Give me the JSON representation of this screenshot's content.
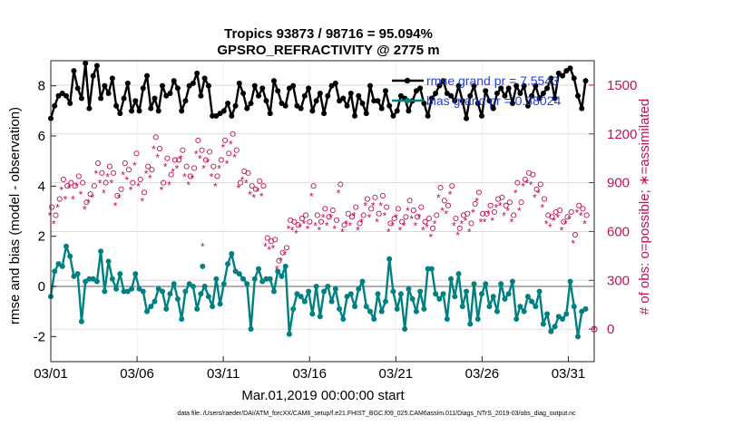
{
  "chart_data": {
    "type": "line",
    "title_line1": "Tropics 93873 / 98716 = 95.094%",
    "title_line2": "GPSRO_REFRACTIVITY @ 2775 m",
    "xlabel": "Mar.01,2019 00:00:00 start",
    "ylabel_left": "rmse and bias (model - observation)",
    "ylabel_right": "# of obs: o=possible; ∗=assimilated",
    "footer": "data file: /Users/raeder/DAI/ATM_forcXX/CAM6_setup/f.e21.FHIST_BGC.f09_025.CAM6assim.011/Diags_NTrS_2019-03/obs_diag_output.nc",
    "x_range": [
      0,
      31.5
    ],
    "x_ticks": [
      0,
      5,
      10,
      15,
      20,
      25,
      30
    ],
    "x_tick_labels": [
      "03/01",
      "03/06",
      "03/11",
      "03/16",
      "03/21",
      "03/26",
      "03/31"
    ],
    "ylim_left": [
      -3,
      9
    ],
    "y_ticks_left": [
      -2,
      0,
      2,
      4,
      6,
      8
    ],
    "y_tick_labels_left": [
      "-2",
      "0",
      "2",
      "4",
      "6",
      "8"
    ],
    "ylim_right": [
      -200,
      1650
    ],
    "y_ticks_right": [
      0,
      300,
      600,
      900,
      1200,
      1500
    ],
    "y_tick_labels_right": [
      "0",
      "300",
      "600",
      "900",
      "1200",
      "1500"
    ],
    "legend": {
      "rmse_label": "rmse grand pr = 7.5543",
      "bias_label": "bias grand pr = 0.38024"
    },
    "colors": {
      "rmse": "#000000",
      "bias": "#008080",
      "obs": "#c0105a",
      "zero_line": "#b0b0b0",
      "grid": "#e8c8d4"
    },
    "series": [
      {
        "name": "rmse",
        "values": [
          6.7,
          7.2,
          7.6,
          7.7,
          7.6,
          7.3,
          8.6,
          7.9,
          7.5,
          8.9,
          7.1,
          8.4,
          8.8,
          7.5,
          8.0,
          7.7,
          8.3,
          7.2,
          6.9,
          7.5,
          8.1,
          7.0,
          7.4,
          7.0,
          7.9,
          8.4,
          7.1,
          7.5,
          7.0,
          8.0,
          7.6,
          7.7,
          8.2,
          7.9,
          7.0,
          7.4,
          8.0,
          8.1,
          8.5,
          7.6,
          8.3,
          8.0,
          6.8,
          6.8,
          6.9,
          7.0,
          7.3,
          6.8,
          7.2,
          8.1,
          7.7,
          7.1,
          7.3,
          8.0,
          7.6,
          7.9,
          7.4,
          6.9,
          8.2,
          7.8,
          7.3,
          7.2,
          7.9,
          8.0,
          7.2,
          7.1,
          7.6,
          7.9,
          7.0,
          7.4,
          7.7,
          6.9,
          7.6,
          8.0,
          8.1,
          7.4,
          7.5,
          7.2,
          7.7,
          6.8,
          7.6,
          7.3,
          6.9,
          8.0,
          7.4,
          7.4,
          7.1,
          7.8,
          7.2,
          6.8,
          7.0,
          7.6,
          7.5,
          7.0,
          7.4,
          7.8,
          7.9,
          7.3,
          6.8,
          7.5,
          7.7,
          8.0,
          8.2,
          7.7,
          7.6,
          7.4,
          8.0,
          7.4,
          6.7,
          7.6,
          8.0,
          7.3,
          6.8,
          7.8,
          7.4,
          7.1,
          7.7,
          7.9,
          7.6,
          7.9,
          7.3,
          8.0,
          7.7,
          8.0,
          7.2,
          7.6,
          8.0,
          7.5,
          7.7,
          7.9,
          8.3,
          7.5,
          8.5,
          8.4,
          8.6,
          8.7,
          8.3,
          7.6,
          7.1,
          8.2
        ]
      },
      {
        "name": "bias",
        "values": [
          -0.4,
          0.6,
          0.9,
          0.8,
          1.6,
          1.2,
          0.4,
          0.5,
          -1.4,
          0.2,
          0.3,
          0.3,
          0.2,
          1.4,
          -0.2,
          1.0,
          0.3,
          -0.1,
          0.5,
          -0.2,
          -0.2,
          -0.1,
          0.5,
          -0.1,
          -0.2,
          -1.0,
          -0.8,
          -0.6,
          -0.1,
          -0.2,
          -0.9,
          -0.3,
          0.1,
          -0.5,
          -1.3,
          -0.2,
          0.1,
          0.0,
          -0.9,
          -0.3,
          0.0,
          -0.4,
          -0.8,
          0.3,
          -0.7,
          0.1,
          0.9,
          1.3,
          0.6,
          0.5,
          0.3,
          0.1,
          -1.7,
          0.3,
          0.7,
          0.2,
          0.3,
          0.3,
          -0.2,
          0.6,
          0.4,
          0.8,
          -1.9,
          -0.9,
          -0.3,
          -0.4,
          -0.6,
          -0.2,
          -1.1,
          0.0,
          -1.2,
          -0.2,
          0.0,
          -0.6,
          -0.1,
          -0.9,
          -1.3,
          -0.4,
          -0.3,
          -0.8,
          -0.1,
          0.2,
          -0.8,
          -1.0,
          -1.3,
          -0.3,
          -1.0,
          -0.6,
          1.1,
          -0.2,
          -0.9,
          -0.3,
          -1.7,
          -0.1,
          -0.5,
          -1.0,
          -0.2,
          -0.9,
          0.7,
          0.7,
          -0.3,
          -0.5,
          -0.3,
          -1.3,
          0.3,
          -0.4,
          0.5,
          -0.8,
          -0.2,
          -1.5,
          0.1,
          -1.3,
          -0.3,
          0.1,
          -0.8,
          -0.4,
          -1.0,
          0.1,
          -0.5,
          -0.3,
          0.2,
          -1.3,
          -0.8,
          -1.0,
          -0.4,
          -0.6,
          -0.8,
          -0.2,
          -1.5,
          -1.1,
          -1.8,
          -1.6,
          -1.2,
          -1.3,
          -1.1,
          0.2,
          -0.8,
          -2.0,
          -1.0,
          -0.9
        ]
      },
      {
        "name": "obs possible",
        "values": [
          750,
          700,
          800,
          920,
          880,
          900,
          880,
          940,
          900,
          780,
          830,
          880,
          1020,
          960,
          900,
          1000,
          960,
          820,
          860,
          1020,
          980,
          900,
          1080,
          920,
          840,
          1000,
          980,
          1180,
          1110,
          900,
          1050,
          950,
          1040,
          1040,
          1100,
          1000,
          940,
          990,
          1160,
          1100,
          1040,
          1090,
          1000,
          940,
          1040,
          1160,
          1080,
          1200,
          1100,
          900,
          970,
          960,
          880,
          860,
          910,
          880,
          560,
          540,
          550,
          420,
          470,
          500,
          670,
          660,
          640,
          680,
          700,
          660,
          880,
          700,
          660,
          740,
          690,
          730,
          670,
          890,
          640,
          710,
          690,
          750,
          650,
          700,
          800,
          740,
          810,
          710,
          820,
          750,
          650,
          680,
          740,
          660,
          690,
          790,
          730,
          690,
          750,
          660,
          680,
          620,
          700,
          870,
          790,
          760,
          880,
          680,
          620,
          700,
          710,
          650,
          770,
          840,
          710,
          710,
          760,
          720,
          800,
          810,
          760,
          780,
          700,
          900,
          780,
          920,
          960,
          950,
          860,
          890,
          800,
          700,
          690,
          720,
          730,
          660,
          690,
          720,
          580,
          760,
          740,
          700
        ]
      },
      {
        "name": "obs assimilated",
        "values": [
          700,
          650,
          750,
          860,
          800,
          870,
          800,
          880,
          830,
          740,
          780,
          810,
          960,
          900,
          840,
          940,
          900,
          760,
          810,
          950,
          920,
          860,
          1010,
          880,
          790,
          960,
          930,
          1110,
          1060,
          860,
          1000,
          890,
          970,
          990,
          1050,
          940,
          890,
          930,
          1080,
          1050,
          990,
          1030,
          940,
          880,
          990,
          1120,
          1020,
          1140,
          1060,
          870,
          920,
          900,
          830,
          810,
          850,
          820,
          510,
          490,
          500,
          370,
          420,
          460,
          620,
          610,
          590,
          630,
          650,
          620,
          820,
          640,
          610,
          690,
          640,
          690,
          620,
          840,
          600,
          650,
          640,
          700,
          610,
          660,
          760,
          690,
          760,
          660,
          760,
          700,
          600,
          640,
          690,
          610,
          640,
          730,
          680,
          640,
          690,
          610,
          630,
          570,
          650,
          810,
          730,
          710,
          830,
          640,
          580,
          650,
          670,
          600,
          720,
          790,
          660,
          660,
          710,
          670,
          750,
          760,
          700,
          730,
          660,
          840,
          730,
          880,
          900,
          890,
          810,
          840,
          750,
          650,
          630,
          670,
          690,
          610,
          650,
          680,
          530,
          720,
          700,
          650
        ]
      }
    ],
    "outliers": {
      "obs_assimilated_point": {
        "x": 8.8,
        "value": 510
      },
      "bias_point": {
        "x": 8.8,
        "value": 0.8
      }
    }
  }
}
